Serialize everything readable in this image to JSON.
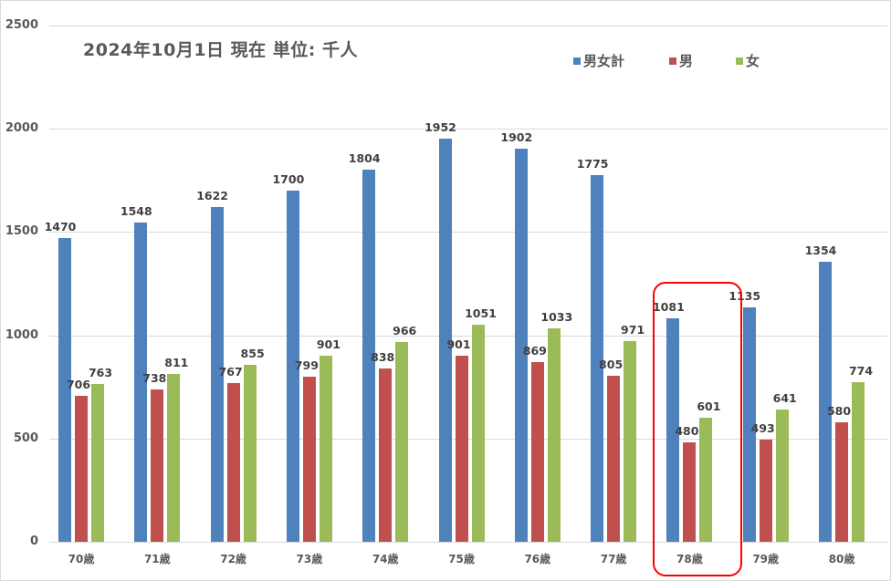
{
  "chart_data": {
    "type": "bar",
    "title": "2024年10月1日 現在  単位: 千人",
    "xlabel": "",
    "ylabel": "",
    "ylim": [
      0,
      2500
    ],
    "yticks": [
      "0",
      "500",
      "1000",
      "1500",
      "2000",
      "2500"
    ],
    "grid": true,
    "legend_position": "top-right",
    "categories": [
      "70歳",
      "71歳",
      "72歳",
      "73歳",
      "74歳",
      "75歳",
      "76歳",
      "77歳",
      "78歳",
      "79歳",
      "80歳"
    ],
    "series": [
      {
        "name": "男女計",
        "color": "#4f81bd",
        "values": [
          1470,
          1548,
          1622,
          1700,
          1804,
          1952,
          1902,
          1775,
          1081,
          1135,
          1354
        ]
      },
      {
        "name": "男",
        "color": "#c0504d",
        "values": [
          706,
          738,
          767,
          799,
          838,
          901,
          869,
          805,
          480,
          493,
          580
        ]
      },
      {
        "name": "女",
        "color": "#9bbb59",
        "values": [
          763,
          811,
          855,
          901,
          966,
          1051,
          1033,
          971,
          601,
          641,
          774
        ]
      }
    ],
    "annotations": [
      {
        "type": "highlight-box",
        "category": "78歳",
        "color": "#ff0000"
      }
    ]
  }
}
